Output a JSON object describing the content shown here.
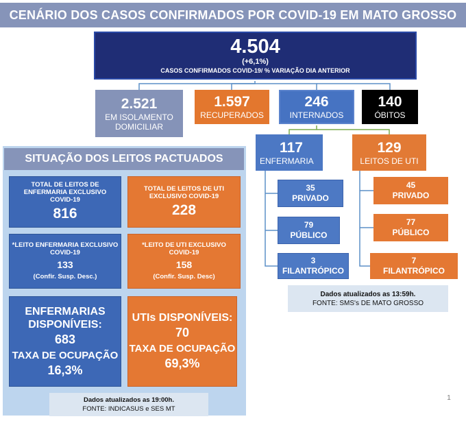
{
  "title": "CENÁRIO DOS CASOS CONFIRMADOS POR COVID-19 EM MATO GROSSO",
  "main": {
    "value": "4.504",
    "variation": "(+6,1%)",
    "caption": "CASOS CONFIRMADOS COVID-19/ % VARIAÇÃO DIA ANTERIOR"
  },
  "isolamento": {
    "value": "2.521",
    "label_line1": "EM ISOLAMENTO",
    "label_line2": "DOMICILIAR"
  },
  "recuperados": {
    "value": "1.597",
    "label": "RECUPERADOS"
  },
  "internados": {
    "value": "246",
    "label": "INTERNADOS"
  },
  "obitos": {
    "value": "140",
    "label": "ÓBITOS"
  },
  "enfermaria": {
    "value": "117",
    "label": "ENFERMARIA",
    "privado": {
      "value": "35",
      "label": "PRIVADO"
    },
    "publico": {
      "value": "79",
      "label": "PÚBLICO"
    },
    "filantropico": {
      "value": "3",
      "label": "FILANTRÓPICO"
    }
  },
  "leitos_uti": {
    "value": "129",
    "label": "LEITOS DE UTI",
    "privado": {
      "value": "45",
      "label": "PRIVADO"
    },
    "publico": {
      "value": "77",
      "label": "PÚBLICO"
    },
    "filantropico": {
      "value": "7",
      "label": "FILANTRÓPICO"
    }
  },
  "update_right": {
    "line1": "Dados atualizados as 13:59h.",
    "line2": "FONTE: SMS's DE MATO GROSSO"
  },
  "leitos_panel": {
    "header": "SITUAÇÃO DOS LEITOS PACTUADOS",
    "enf_total": {
      "line1": "TOTAL DE LEITOS DE",
      "line2": "ENFERMARIA  EXCLUSIVO",
      "line3": "COVID-19",
      "value": "816"
    },
    "uti_total": {
      "line1": "TOTAL DE LEITOS DE UTI",
      "line2": "EXCLUSIVO COVID-19",
      "value": "228"
    },
    "enf_leito": {
      "line1": "*LEITO ENFERMARIA EXCLUSIVO",
      "line2": "COVID-19",
      "value": "133",
      "sub": "(Confir. Susp. Desc.)"
    },
    "uti_leito": {
      "line1": "*LEITO DE UTI EXCLUSIVO",
      "line2": "COVID-19",
      "value": "158",
      "sub": "(Confir. Susp. Desc)"
    },
    "enf_disp": {
      "line1": "ENFERMARIAS",
      "line2": "DISPONÍVEIS:",
      "value": "683",
      "rate_label": "TAXA DE OCUPAÇÃO",
      "rate": "16,3%"
    },
    "uti_disp": {
      "line1": "UTIs DISPONÍVEIS:",
      "value": "70",
      "rate_label": "TAXA DE OCUPAÇÃO",
      "rate": "69,3%"
    }
  },
  "update_left": {
    "line1": "Dados atualizados as 19:00h.",
    "line2": "FONTE: INDICASUS e SES MT"
  },
  "page_number": "1",
  "colors": {
    "title_bar": "#8694b9",
    "main_box": "#1f2d75",
    "blue": "#4673c2",
    "orange": "#e3772e",
    "black": "#000000",
    "panel_bg": "#bdd5ee",
    "connector_blue": "#5b8fc7",
    "connector_green": "#7cab4c"
  }
}
